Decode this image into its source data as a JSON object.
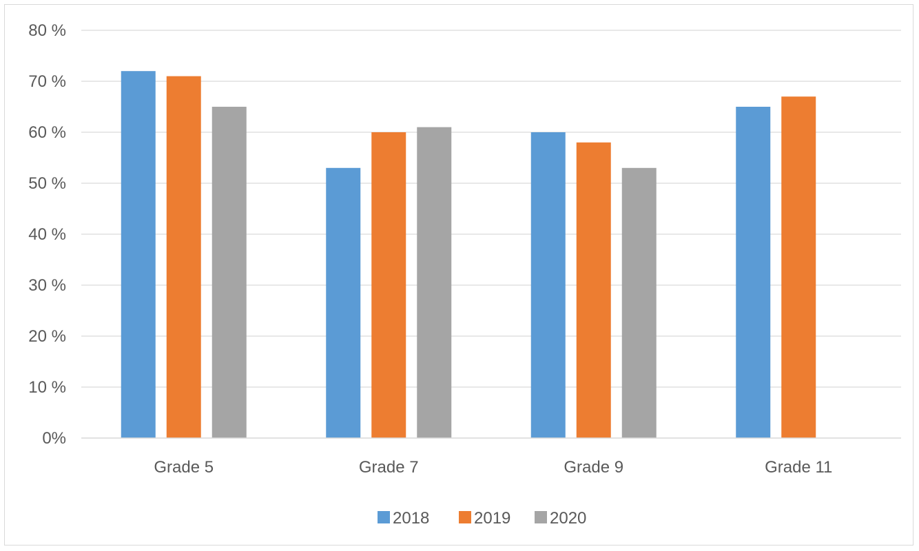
{
  "chart_data": {
    "type": "bar",
    "title": "",
    "xlabel": "",
    "ylabel": "",
    "categories": [
      "Grade 5",
      "Grade 7",
      "Grade 9",
      "Grade 11"
    ],
    "series": [
      {
        "name": "2018",
        "color": "#5b9bd5",
        "values": [
          72,
          53,
          60,
          65
        ]
      },
      {
        "name": "2019",
        "color": "#ed7d31",
        "values": [
          71,
          60,
          58,
          67
        ]
      },
      {
        "name": "2020",
        "color": "#a5a5a5",
        "values": [
          65,
          61,
          53,
          null
        ]
      }
    ],
    "ylim": [
      0,
      80
    ],
    "yticks": [
      "0%",
      "10 %",
      "20 %",
      "30 %",
      "40 %",
      "50 %",
      "60 %",
      "70 %",
      "80 %"
    ],
    "grid": true,
    "legend_position": "bottom"
  }
}
